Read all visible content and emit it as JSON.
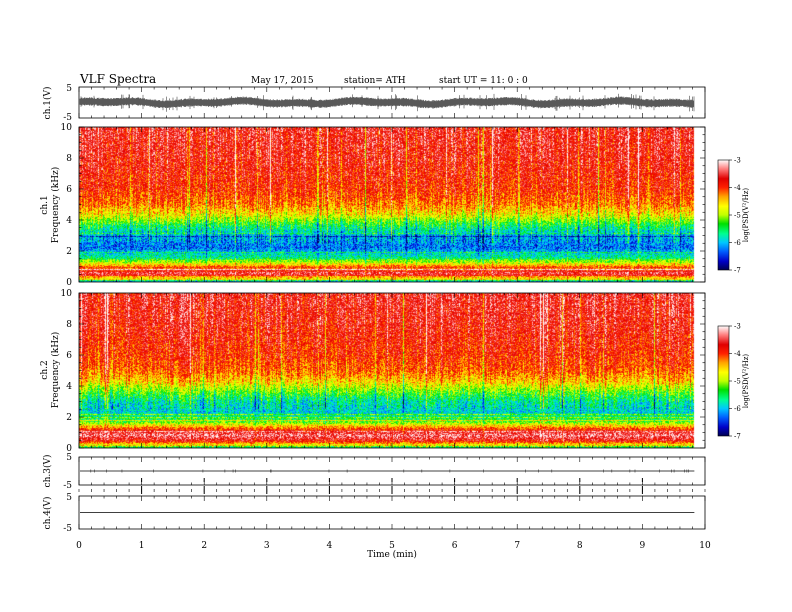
{
  "header": {
    "title": "VLF  Spectra",
    "date": "May 17, 2015",
    "station": "station= ATH",
    "start": "start  UT  =    11: 0  : 0"
  },
  "colors": {
    "colormap": [
      "#000050",
      "#0000c8",
      "#0060ff",
      "#00c8ff",
      "#00ff90",
      "#00e000",
      "#c0ff00",
      "#ffff00",
      "#ffa000",
      "#ff2000",
      "#e00000",
      "#ff8080",
      "#ffffff"
    ]
  },
  "chart_data": [
    {
      "type": "line",
      "name": "ch1-waveform",
      "ylabel": "ch.1(V)",
      "yticks": [
        "5",
        "-5"
      ],
      "ylim": [
        -5,
        5
      ],
      "xlim": [
        0,
        10
      ],
      "data_end_min": 9.83,
      "envelope": [
        -1.6,
        1.6
      ]
    },
    {
      "type": "heatmap",
      "name": "ch1-spectrogram",
      "channel": "ch.1",
      "ylabel": "Frequency  (kHz)",
      "yticks": [
        "0",
        "2",
        "4",
        "6",
        "8",
        "10"
      ],
      "ylim": [
        0,
        10
      ],
      "xlim": [
        0,
        10
      ],
      "data_end_min": 9.83,
      "colorbar": {
        "label": "log(PSD(V²/Hz)",
        "ticks": [
          "-3",
          "-4",
          "-5",
          "-6",
          "-7"
        ],
        "range": [
          -7,
          -3
        ]
      },
      "log_psd_by_freq_khz": [
        [
          0,
          -6.0
        ],
        [
          0.3,
          -3.8
        ],
        [
          0.7,
          -3.4
        ],
        [
          1.0,
          -4.3
        ],
        [
          1.5,
          -5.6
        ],
        [
          2.2,
          -6.3
        ],
        [
          3.0,
          -6.0
        ],
        [
          3.7,
          -5.4
        ],
        [
          4.3,
          -4.7
        ],
        [
          5.0,
          -4.2
        ],
        [
          6.0,
          -3.9
        ],
        [
          8.0,
          -3.7
        ],
        [
          10.0,
          -3.6
        ]
      ]
    },
    {
      "type": "heatmap",
      "name": "ch2-spectrogram",
      "channel": "ch.2",
      "ylabel": "Frequency  (kHz)",
      "yticks": [
        "0",
        "2",
        "4",
        "6",
        "8",
        "10"
      ],
      "ylim": [
        0,
        10
      ],
      "xlim": [
        0,
        10
      ],
      "data_end_min": 9.83,
      "colorbar": {
        "label": "log(PSD(V²/Hz)",
        "ticks": [
          "-3",
          "-4",
          "-5",
          "-6",
          "-7"
        ],
        "range": [
          -7,
          -3
        ]
      },
      "log_psd_by_freq_khz": [
        [
          0,
          -5.5
        ],
        [
          0.4,
          -3.8
        ],
        [
          0.8,
          -3.3
        ],
        [
          1.2,
          -4.0
        ],
        [
          1.7,
          -5.3
        ],
        [
          2.3,
          -5.9
        ],
        [
          3.0,
          -5.7
        ],
        [
          3.7,
          -5.1
        ],
        [
          4.3,
          -4.5
        ],
        [
          5.0,
          -4.1
        ],
        [
          6.0,
          -3.9
        ],
        [
          8.0,
          -3.7
        ],
        [
          10.0,
          -3.6
        ]
      ]
    },
    {
      "type": "line",
      "name": "ch3-waveform",
      "ylabel": "ch.3(V)",
      "yticks": [
        "5",
        "-5"
      ],
      "ylim": [
        -5,
        5
      ],
      "xlim": [
        0,
        10
      ],
      "data_end_min": 9.83,
      "level": 0
    },
    {
      "type": "line",
      "name": "ch4-waveform",
      "ylabel": "ch.4(V)",
      "yticks": [
        "5",
        "-5"
      ],
      "ylim": [
        -5,
        5
      ],
      "xlim": [
        0,
        10
      ],
      "data_end_min": 9.83,
      "level": 0,
      "minute_markers": [
        1,
        2,
        3,
        4,
        5,
        6,
        7,
        8,
        9
      ]
    }
  ],
  "xaxis": {
    "label": "Time  (min)",
    "ticks": [
      "0",
      "1",
      "2",
      "3",
      "4",
      "5",
      "6",
      "7",
      "8",
      "9",
      "10"
    ],
    "xlim": [
      0,
      10
    ]
  }
}
